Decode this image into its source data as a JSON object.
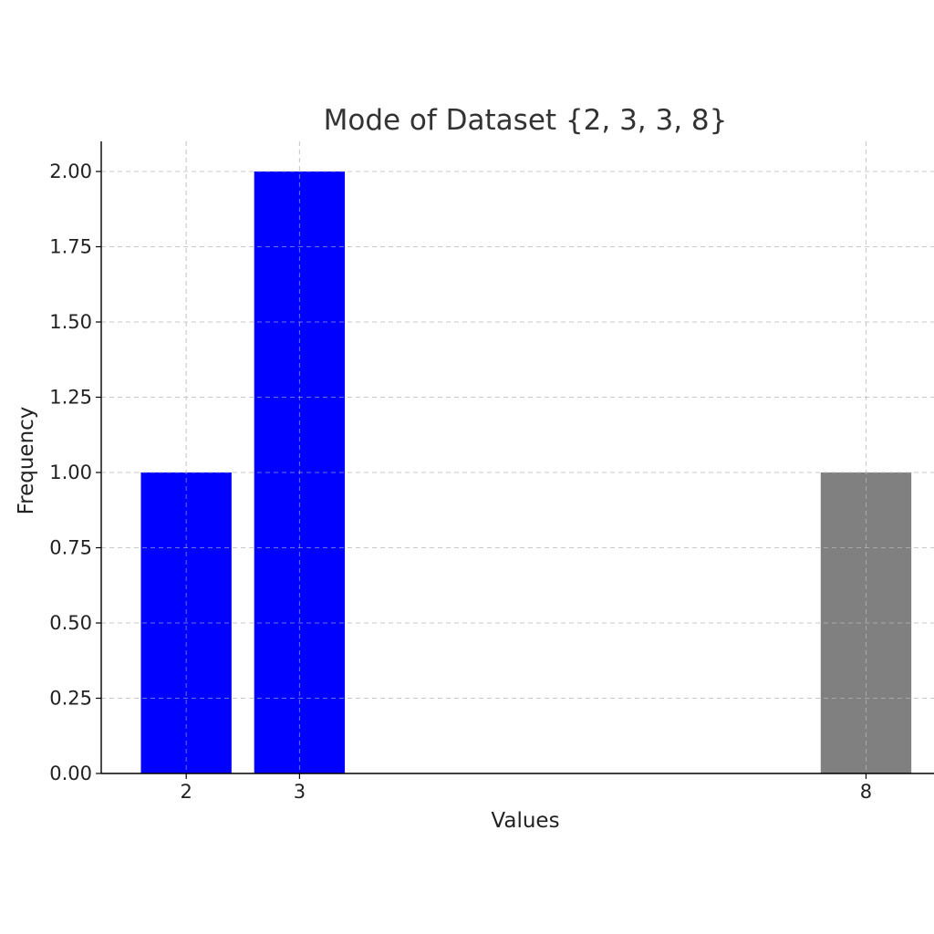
{
  "chart_data": {
    "type": "bar",
    "title": "Mode of Dataset {2, 3, 3, 8}",
    "xlabel": "Values",
    "ylabel": "Frequency",
    "x": [
      2,
      3,
      8
    ],
    "values": [
      1,
      2,
      1
    ],
    "bar_colors": [
      "#0000ff",
      "#0000ff",
      "#808080"
    ],
    "xlim": [
      1.25,
      8.6
    ],
    "ylim": [
      0,
      2.1
    ],
    "xticks": [
      2,
      3,
      8
    ],
    "xtick_labels": [
      "2",
      "3",
      "8"
    ],
    "yticks": [
      0,
      0.25,
      0.5,
      0.75,
      1.0,
      1.25,
      1.5,
      1.75,
      2.0
    ],
    "ytick_labels": [
      "0.00",
      "0.25",
      "0.50",
      "0.75",
      "1.00",
      "1.25",
      "1.50",
      "1.75",
      "2.00"
    ],
    "grid": true,
    "legend": "none"
  }
}
